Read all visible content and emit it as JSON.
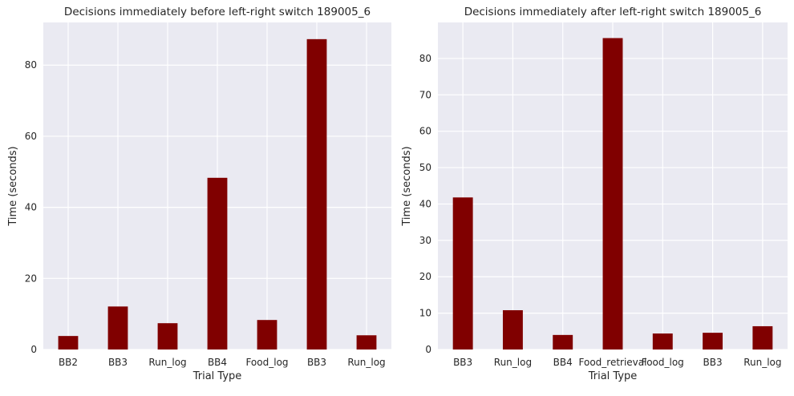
{
  "chart_data": [
    {
      "type": "bar",
      "title": "Decisions immediately before left-right switch 189005_6",
      "xlabel": "Trial Type",
      "ylabel": "Time (seconds)",
      "categories": [
        "BB2",
        "BB3",
        "Run_log",
        "BB4",
        "Food_log",
        "BB3",
        "Run_log"
      ],
      "values": [
        3.8,
        12.1,
        7.4,
        48.3,
        8.3,
        87.3,
        4.0
      ],
      "ylim": [
        0,
        92
      ],
      "yticks": [
        0,
        20,
        40,
        60,
        80
      ],
      "grid": true,
      "bar_color": "#800000",
      "background_color": "#EAEAF2"
    },
    {
      "type": "bar",
      "title": "Decisions immediately after left-right switch 189005_6",
      "xlabel": "Trial Type",
      "ylabel": "Time (seconds)",
      "categories": [
        "BB3",
        "Run_log",
        "BB4",
        "Food_retrieval",
        "Food_log",
        "BB3",
        "Run_log"
      ],
      "values": [
        41.8,
        10.8,
        4.0,
        85.6,
        4.4,
        4.6,
        6.4
      ],
      "ylim": [
        0,
        89.9
      ],
      "yticks": [
        0,
        10,
        20,
        30,
        40,
        50,
        60,
        70,
        80
      ],
      "grid": true,
      "bar_color": "#800000",
      "background_color": "#EAEAF2"
    }
  ]
}
